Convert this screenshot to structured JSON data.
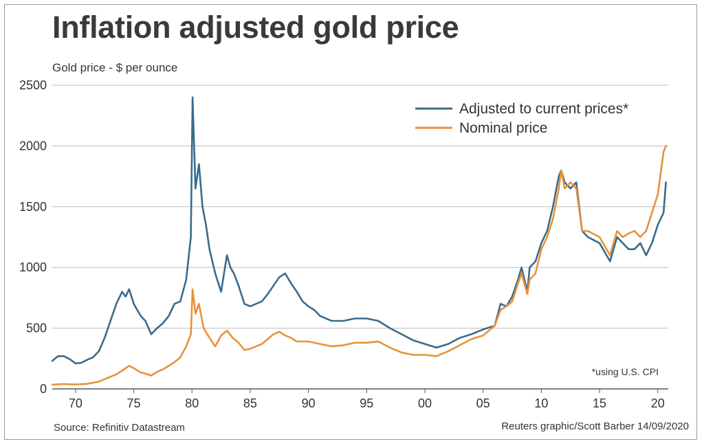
{
  "chart_data": {
    "type": "line",
    "title": "Inflation adjusted gold price",
    "ylabel": "Gold price - $ per ounce",
    "xlabel": "",
    "xlim": [
      1968,
      2020.9
    ],
    "ylim": [
      0,
      2500
    ],
    "yticks": [
      0,
      500,
      1000,
      1500,
      2000,
      2500
    ],
    "ytick_labels": [
      "0",
      "500",
      "1000",
      "1500",
      "2000",
      "2500"
    ],
    "xticks": [
      1970,
      1975,
      1980,
      1985,
      1990,
      1995,
      2000,
      2005,
      2010,
      2015,
      2020
    ],
    "xtick_labels": [
      "70",
      "75",
      "80",
      "85",
      "90",
      "95",
      "00",
      "05",
      "10",
      "15",
      "20"
    ],
    "grid": "horizontal",
    "legend_position": "top-right",
    "note": "*using U.S. CPI",
    "source": "Source: Refinitiv Datastream",
    "credit": "Reuters graphic/Scott Barber 14/09/2020",
    "series": [
      {
        "name": "Adjusted to current prices*",
        "color": "#3a6b8c",
        "x": [
          1968,
          1968.5,
          1969,
          1969.5,
          1970,
          1970.5,
          1971,
          1971.5,
          1972,
          1972.5,
          1973,
          1973.5,
          1974,
          1974.3,
          1974.6,
          1975,
          1975.3,
          1975.6,
          1976,
          1976.5,
          1977,
          1977.5,
          1978,
          1978.5,
          1979,
          1979.5,
          1979.9,
          1980.05,
          1980.3,
          1980.6,
          1980.9,
          1981.2,
          1981.5,
          1982,
          1982.5,
          1983,
          1983.3,
          1983.6,
          1984,
          1984.5,
          1985,
          1985.5,
          1986,
          1986.5,
          1987,
          1987.5,
          1988,
          1988.5,
          1989,
          1989.5,
          1990,
          1990.5,
          1991,
          1992,
          1993,
          1994,
          1995,
          1996,
          1997,
          1998,
          1999,
          2000,
          2001,
          2002,
          2003,
          2004,
          2005,
          2006,
          2006.5,
          2007,
          2007.5,
          2008,
          2008.3,
          2008.8,
          2009,
          2009.5,
          2010,
          2010.5,
          2011,
          2011.5,
          2011.7,
          2012,
          2012.5,
          2013,
          2013.5,
          2014,
          2015,
          2015.9,
          2016.5,
          2017,
          2017.5,
          2018,
          2018.5,
          2019,
          2019.5,
          2020,
          2020.5,
          2020.7
        ],
        "values": [
          230,
          270,
          270,
          245,
          210,
          215,
          240,
          260,
          310,
          420,
          560,
          700,
          800,
          760,
          820,
          700,
          650,
          600,
          560,
          450,
          500,
          540,
          600,
          700,
          720,
          900,
          1250,
          2400,
          1650,
          1850,
          1500,
          1350,
          1150,
          950,
          800,
          1100,
          1000,
          950,
          850,
          700,
          680,
          700,
          720,
          780,
          850,
          920,
          950,
          870,
          800,
          720,
          680,
          650,
          600,
          560,
          560,
          580,
          580,
          560,
          500,
          450,
          400,
          370,
          340,
          370,
          420,
          450,
          490,
          520,
          700,
          680,
          760,
          900,
          1000,
          800,
          1000,
          1050,
          1200,
          1300,
          1500,
          1750,
          1800,
          1700,
          1650,
          1700,
          1300,
          1250,
          1200,
          1050,
          1250,
          1200,
          1150,
          1150,
          1200,
          1100,
          1200,
          1350,
          1450,
          1700
        ]
      },
      {
        "name": "Nominal price",
        "color": "#e8913a",
        "x": [
          1968,
          1969,
          1970,
          1971,
          1972,
          1973,
          1973.5,
          1974,
          1974.6,
          1975,
          1975.5,
          1976,
          1976.5,
          1977,
          1977.5,
          1978,
          1978.5,
          1979,
          1979.5,
          1979.9,
          1980.05,
          1980.3,
          1980.6,
          1981,
          1981.5,
          1982,
          1982.5,
          1983,
          1983.5,
          1984,
          1984.5,
          1985,
          1986,
          1987,
          1987.5,
          1988,
          1988.5,
          1989,
          1990,
          1991,
          1992,
          1993,
          1994,
          1995,
          1996,
          1997,
          1998,
          1999,
          2000,
          2001,
          2002,
          2003,
          2004,
          2005,
          2006,
          2006.5,
          2007,
          2007.5,
          2008,
          2008.3,
          2008.8,
          2009,
          2009.5,
          2010,
          2010.5,
          2011,
          2011.5,
          2011.7,
          2012,
          2012.5,
          2013,
          2013.5,
          2014,
          2015,
          2015.9,
          2016.5,
          2017,
          2017.5,
          2018,
          2018.5,
          2019,
          2019.5,
          2020,
          2020.5,
          2020.7
        ],
        "values": [
          35,
          40,
          36,
          42,
          60,
          100,
          120,
          150,
          190,
          170,
          140,
          125,
          110,
          140,
          160,
          190,
          220,
          260,
          350,
          450,
          820,
          620,
          700,
          500,
          420,
          350,
          440,
          480,
          420,
          380,
          320,
          330,
          370,
          450,
          470,
          440,
          420,
          390,
          390,
          370,
          350,
          360,
          380,
          380,
          390,
          340,
          300,
          280,
          280,
          270,
          310,
          360,
          410,
          440,
          520,
          650,
          680,
          720,
          870,
          950,
          780,
          900,
          950,
          1150,
          1250,
          1400,
          1650,
          1800,
          1650,
          1700,
          1650,
          1300,
          1300,
          1250,
          1100,
          1300,
          1250,
          1280,
          1300,
          1250,
          1300,
          1450,
          1600,
          1950,
          2000
        ]
      }
    ]
  }
}
